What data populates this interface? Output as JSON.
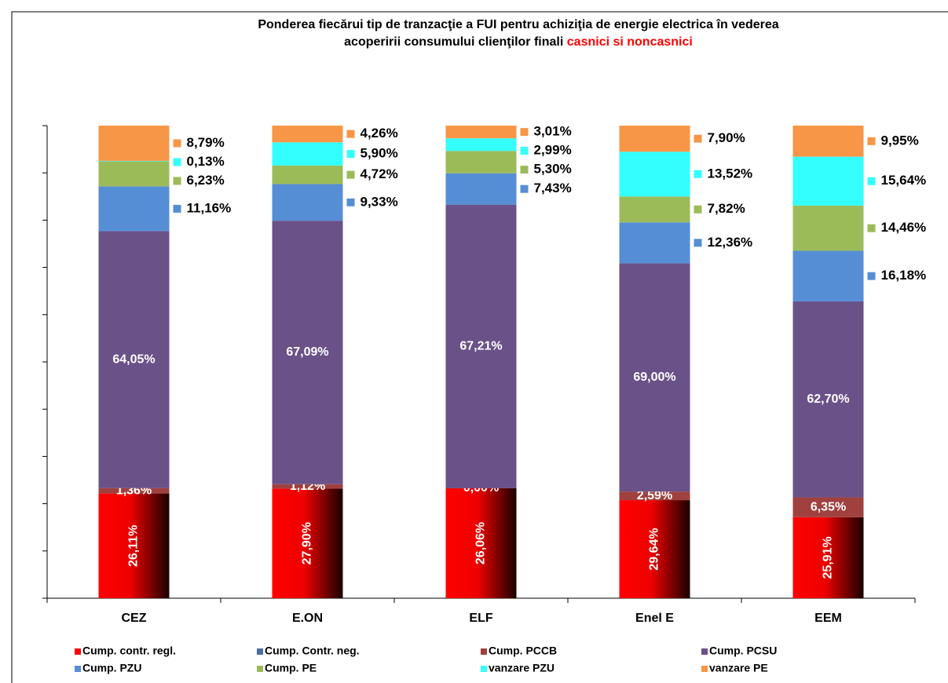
{
  "chart_data": {
    "type": "bar",
    "stacking": "percent",
    "title": "Ponderea fiecărui tip de tranzacţie a FUI  pentru achiziţia de energie  electrica  în vederea",
    "title_line2": "acoperirii consumului  clienţilor finali",
    "title_highlight": "casnici si noncasnici",
    "categories": [
      "CEZ",
      "E.ON",
      "ELF",
      "Enel E",
      "EEM"
    ],
    "ylim": [
      0,
      100
    ],
    "yticks": [
      0,
      10,
      20,
      30,
      40,
      50,
      60,
      70,
      80,
      90,
      100
    ],
    "show_tick_labels": false,
    "series": [
      {
        "name": "Cump. contr. regl.",
        "color": "#ff0000",
        "values": [
          26.11,
          27.9,
          26.06,
          29.64,
          25.91
        ],
        "value_labels": [
          "26,11%",
          "27,90%",
          "26,06%",
          "29,64%",
          "25,91%"
        ],
        "label_position": "inside-vertical"
      },
      {
        "name": "Cump. Contr. neg.",
        "color": "#4a6fa5",
        "values": [
          0,
          0,
          0,
          0,
          0
        ]
      },
      {
        "name": "Cump. PCCB",
        "color": "#a0403f",
        "values": [
          1.36,
          1.12,
          0.0,
          2.59,
          6.35
        ],
        "value_labels": [
          "1,36%",
          "1,12%",
          "0,00%",
          "2,59%",
          "6,35%"
        ],
        "label_position": "inside"
      },
      {
        "name": "Cump. PCSU",
        "color": "#6a5188",
        "values": [
          64.05,
          67.09,
          67.21,
          69.0,
          62.7
        ],
        "value_labels": [
          "64,05%",
          "67,09%",
          "67,21%",
          "69,00%",
          "62,70%"
        ],
        "label_position": "inside"
      },
      {
        "name": "Cump. PZU",
        "color": "#558ed5",
        "values": [
          11.16,
          9.33,
          7.43,
          12.36,
          16.18
        ],
        "value_labels": [
          "11,16%",
          "9,33%",
          "7,43%",
          "12,36%",
          "16,18%"
        ],
        "label_position": "outside"
      },
      {
        "name": "Cump. PE",
        "color": "#9bbb59",
        "values": [
          6.23,
          4.72,
          5.3,
          7.82,
          14.46
        ],
        "value_labels": [
          "6,23%",
          "4,72%",
          "5,30%",
          "7,82%",
          "14,46%"
        ],
        "label_position": "outside"
      },
      {
        "name": "vanzare  PZU",
        "color": "#33ffff",
        "values": [
          0.13,
          5.9,
          2.99,
          13.52,
          15.64
        ],
        "value_labels": [
          "0,13%",
          "5,90%",
          "2,99%",
          "13,52%",
          "15,64%"
        ],
        "label_position": "outside"
      },
      {
        "name": "vanzare  PE",
        "color": "#f79646",
        "values": [
          8.79,
          4.26,
          3.01,
          7.9,
          9.95
        ],
        "value_labels": [
          "8,79%",
          "4,26%",
          "3,01%",
          "7,90%",
          "9,95%"
        ],
        "label_position": "outside"
      }
    ]
  }
}
